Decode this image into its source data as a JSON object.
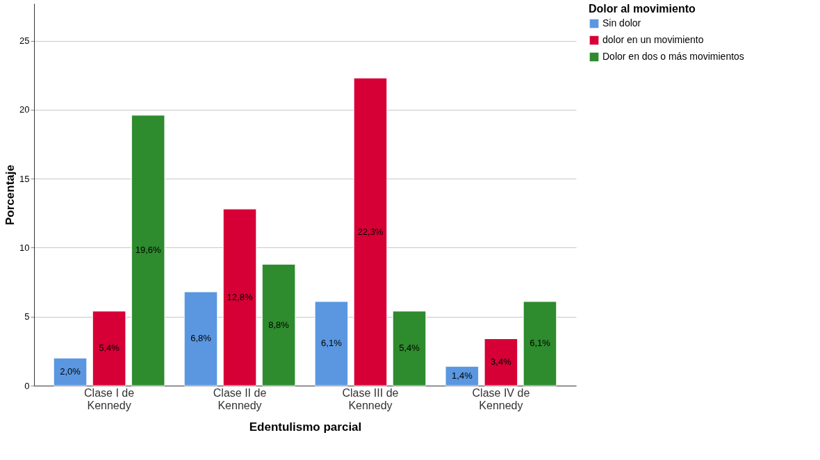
{
  "chart_data": {
    "type": "bar",
    "xlabel": "Edentulismo parcial",
    "ylabel": "Porcentaje",
    "legend_title": "Dolor al movimiento",
    "legend": "top right",
    "grid": "y",
    "categories": [
      "Clase I de Kennedy",
      "Clase II de Kennedy",
      "Clase III de Kennedy",
      "Clase IV de Kennedy"
    ],
    "ylim": [
      0,
      27.7
    ],
    "yticks": [
      0,
      5,
      10,
      15,
      20,
      25
    ],
    "series": [
      {
        "name": "Sin dolor",
        "color": "#5a97e0",
        "values": [
          2.0,
          6.8,
          6.1,
          1.4
        ],
        "value_labels": [
          "2,0%",
          "6,8%",
          "6,1%",
          "1,4%"
        ]
      },
      {
        "name": "dolor en un movimiento",
        "color": "#d60036",
        "values": [
          5.4,
          12.8,
          22.3,
          3.4
        ],
        "value_labels": [
          "5,4%",
          "12,8%",
          "22,3%",
          "3,4%"
        ]
      },
      {
        "name": "Dolor en dos o más movimientos",
        "color": "#2e8b2e",
        "values": [
          19.6,
          8.8,
          5.4,
          6.1
        ],
        "value_labels": [
          "19,6%",
          "8,8%",
          "5,4%",
          "6,1%"
        ]
      }
    ]
  }
}
